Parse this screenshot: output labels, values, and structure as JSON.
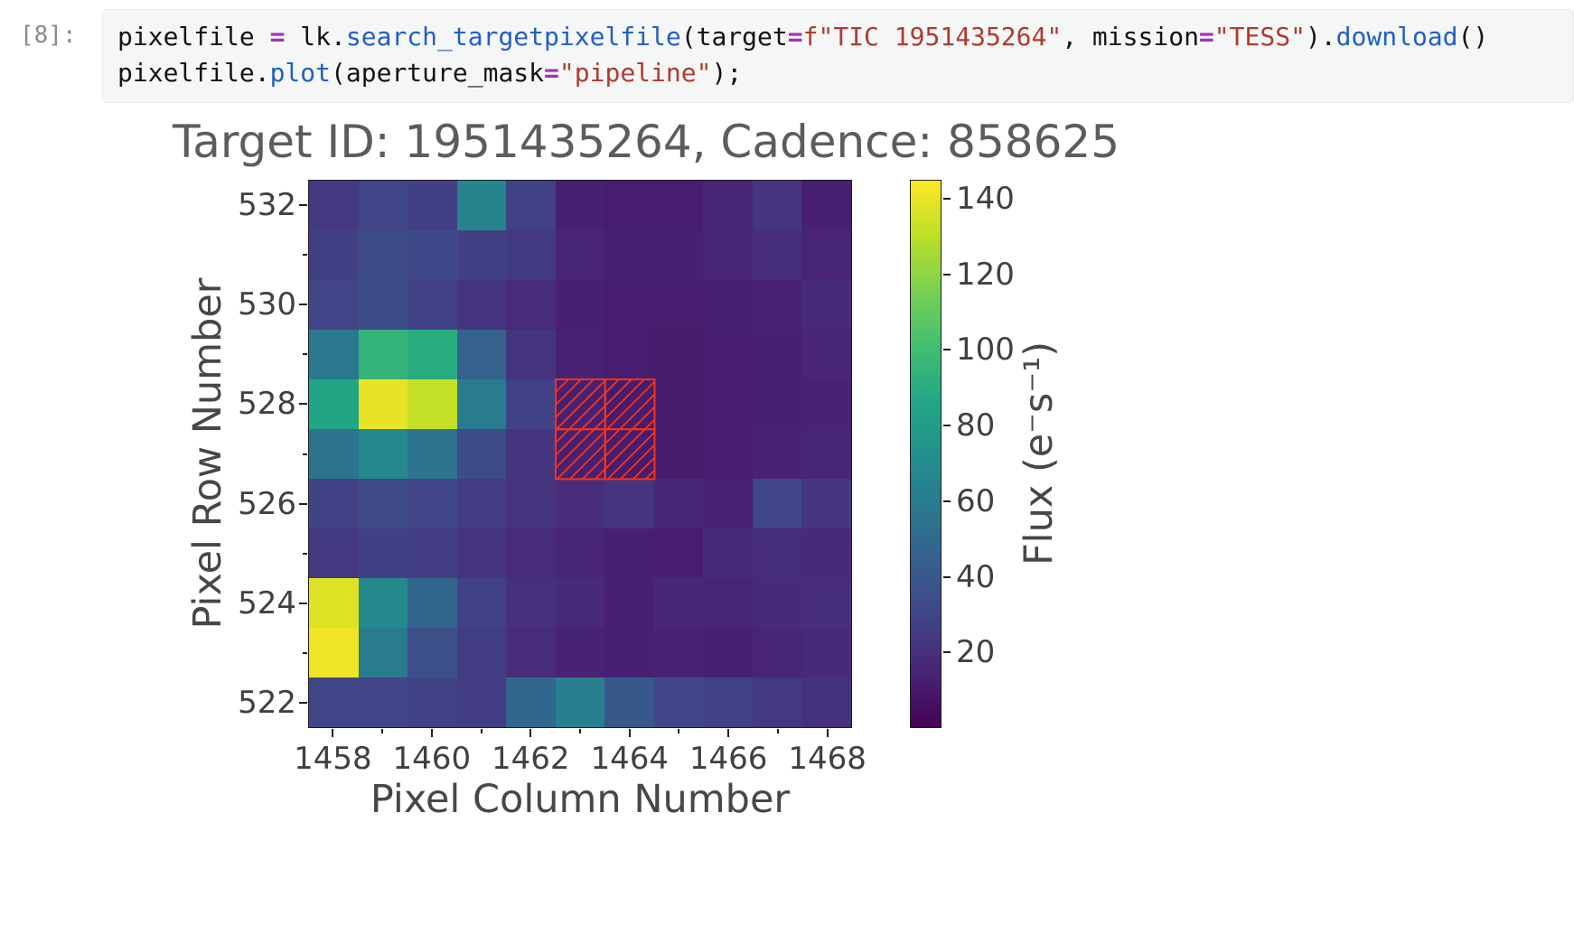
{
  "colors": {
    "operator": "#a12fbf",
    "function": "#2160c4",
    "string": "#b03b2e",
    "prompt": "#8a8a8a",
    "title_text": "#5c5c5c",
    "aperture": "#f5341c"
  },
  "notebook": {
    "cell": {
      "prompt": "[8]:",
      "code_lines": [
        [
          {
            "text": "pixelfile ",
            "type": "name"
          },
          {
            "text": "= ",
            "type": "op"
          },
          {
            "text": "lk.",
            "type": "name"
          },
          {
            "text": "search_targetpixelfile",
            "type": "func"
          },
          {
            "text": "(target",
            "type": "name"
          },
          {
            "text": "=",
            "type": "op"
          },
          {
            "text": "f\"TIC 1951435264\"",
            "type": "str"
          },
          {
            "text": ", mission",
            "type": "name"
          },
          {
            "text": "=",
            "type": "op"
          },
          {
            "text": "\"TESS\"",
            "type": "str"
          },
          {
            "text": ").",
            "type": "name"
          },
          {
            "text": "download",
            "type": "func"
          },
          {
            "text": "()",
            "type": "name"
          }
        ],
        [
          {
            "text": "pixelfile.",
            "type": "name"
          },
          {
            "text": "plot",
            "type": "func"
          },
          {
            "text": "(aperture_mask",
            "type": "name"
          },
          {
            "text": "=",
            "type": "op"
          },
          {
            "text": "\"pipeline\"",
            "type": "str"
          },
          {
            "text": ");",
            "type": "name"
          }
        ]
      ]
    }
  },
  "chart_data": {
    "type": "heatmap",
    "title": "Target ID: 1951435264, Cadence: 858625",
    "xlabel": "Pixel Column Number",
    "ylabel": "Pixel Row Number",
    "colorbar_label": "Flux (e⁻s⁻¹)",
    "colormap": "viridis",
    "columns": [
      1458,
      1459,
      1460,
      1461,
      1462,
      1463,
      1464,
      1465,
      1466,
      1467,
      1468
    ],
    "rows_top_to_bottom": [
      532,
      531,
      530,
      529,
      528,
      527,
      526,
      525,
      524,
      523,
      522
    ],
    "x_ticks": [
      1458,
      1460,
      1462,
      1464,
      1466,
      1468
    ],
    "y_ticks": [
      532,
      530,
      528,
      526,
      524,
      522
    ],
    "colorbar_ticks": [
      140,
      120,
      100,
      80,
      60,
      40,
      20
    ],
    "flux_range": [
      0,
      145
    ],
    "values": [
      [
        24,
        30,
        27,
        65,
        28,
        13,
        12,
        12,
        15,
        22,
        13
      ],
      [
        27,
        33,
        31,
        27,
        25,
        15,
        13,
        13,
        15,
        19,
        15
      ],
      [
        29,
        34,
        28,
        22,
        18,
        13,
        12,
        12,
        13,
        14,
        17
      ],
      [
        58,
        95,
        90,
        45,
        22,
        14,
        12,
        11,
        12,
        13,
        15
      ],
      [
        85,
        140,
        132,
        60,
        28,
        13,
        11,
        11,
        12,
        13,
        14
      ],
      [
        55,
        68,
        55,
        33,
        22,
        13,
        11,
        11,
        12,
        14,
        15
      ],
      [
        28,
        32,
        30,
        26,
        22,
        18,
        22,
        16,
        14,
        30,
        22
      ],
      [
        24,
        27,
        26,
        22,
        18,
        15,
        13,
        12,
        17,
        19,
        17
      ],
      [
        138,
        68,
        48,
        28,
        20,
        17,
        13,
        16,
        15,
        17,
        19
      ],
      [
        142,
        60,
        35,
        26,
        18,
        14,
        13,
        14,
        13,
        15,
        17
      ],
      [
        30,
        30,
        28,
        26,
        48,
        62,
        40,
        30,
        28,
        24,
        21
      ]
    ],
    "aperture_mask": {
      "columns": [
        1463,
        1464
      ],
      "rows": [
        527,
        528
      ],
      "hatch": "/"
    }
  }
}
